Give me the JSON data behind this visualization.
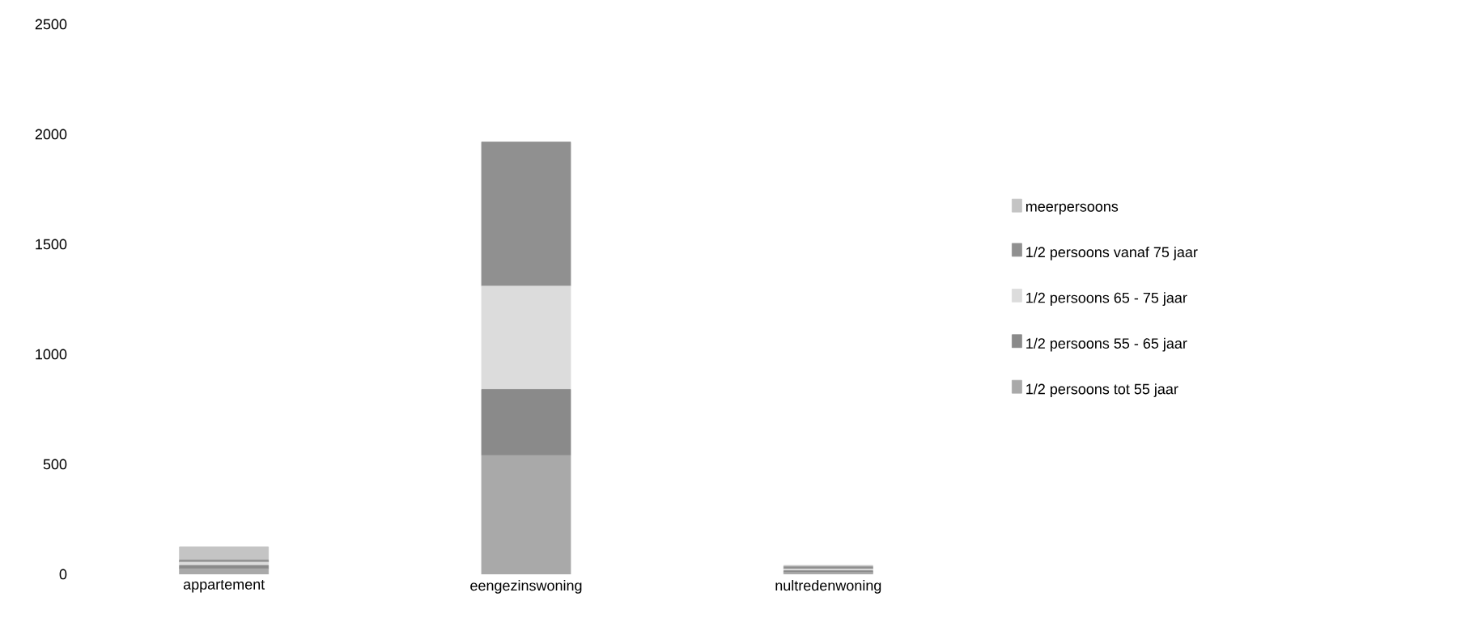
{
  "chart_data": {
    "type": "bar",
    "stacked": true,
    "categories": [
      "appartement",
      "eengezinswoning",
      "nultredenwoning"
    ],
    "series": [
      {
        "name": "1/2 persoons tot 55 jaar",
        "color": "#a9a9a9",
        "values": [
          25,
          540,
          8
        ]
      },
      {
        "name": "1/2 persoons 55 - 65 jaar",
        "color": "#8a8a8a",
        "values": [
          15,
          300,
          8
        ]
      },
      {
        "name": "1/2 persoons 65 - 75 jaar",
        "color": "#dcdcdc",
        "values": [
          15,
          470,
          8
        ]
      },
      {
        "name": "1/2 persoons vanaf 75 jaar",
        "color": "#909090",
        "values": [
          10,
          655,
          10
        ]
      },
      {
        "name": "meerpersoons",
        "color": "#c4c4c4",
        "values": [
          60,
          0,
          6
        ]
      }
    ],
    "ylim": [
      0,
      2500
    ],
    "yticks": [
      0,
      500,
      1000,
      1500,
      2000,
      2500
    ],
    "grid": false,
    "legend": "right"
  }
}
